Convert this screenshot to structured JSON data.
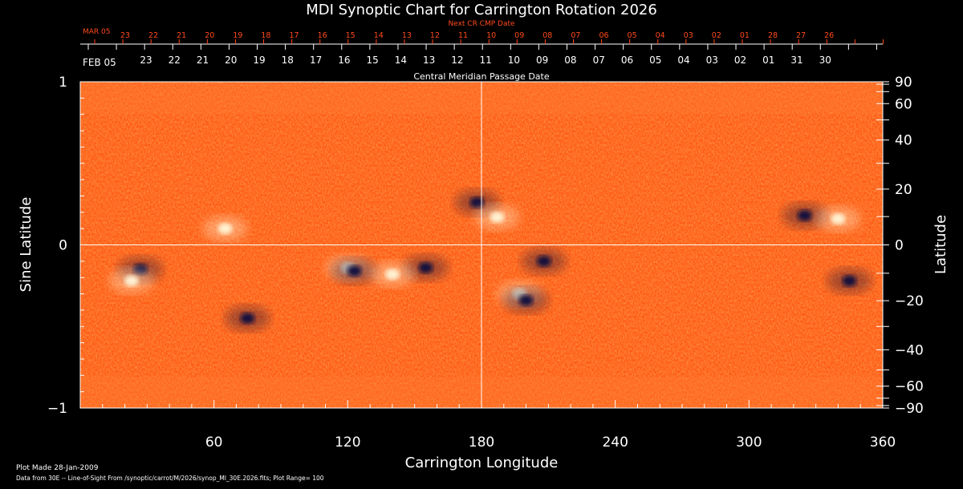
{
  "chart_data": {
    "type": "heatmap",
    "title": "MDI Synoptic Chart for Carrington Rotation 2026",
    "xlabel": "Carrington Longitude",
    "ylabel": "Sine Latitude",
    "y2label": "Latitude",
    "xlim": [
      0,
      360
    ],
    "ylim": [
      -1,
      1
    ],
    "x_ticks": [
      60,
      120,
      180,
      240,
      300,
      360
    ],
    "y_ticks_left": [
      {
        "value": 1,
        "label": "1"
      },
      {
        "value": 0,
        "label": "0"
      },
      {
        "value": -1,
        "label": "−1"
      }
    ],
    "y_ticks_right": [
      {
        "lat": 90,
        "label": "90"
      },
      {
        "lat": 60,
        "label": "60"
      },
      {
        "lat": 40,
        "label": "40"
      },
      {
        "lat": 20,
        "label": "20"
      },
      {
        "lat": 0,
        "label": "0"
      },
      {
        "lat": -20,
        "label": "−20"
      },
      {
        "lat": -40,
        "label": "−40"
      },
      {
        "lat": -60,
        "label": "−60"
      },
      {
        "lat": -90,
        "label": "−90"
      }
    ],
    "cmp_axis": {
      "label": "Central Meridian Passage Date",
      "start_label": "FEB 05",
      "dates": [
        "23",
        "22",
        "21",
        "20",
        "19",
        "18",
        "17",
        "16",
        "15",
        "14",
        "13",
        "12",
        "11",
        "10",
        "09",
        "08",
        "07",
        "06",
        "05",
        "04",
        "03",
        "02",
        "01",
        "31",
        "30"
      ]
    },
    "next_cmp_axis": {
      "label": "Next CR CMP Date",
      "start_label": "MAR 05",
      "dates": [
        "23",
        "22",
        "21",
        "20",
        "19",
        "18",
        "17",
        "16",
        "15",
        "14",
        "13",
        "12",
        "11",
        "10",
        "09",
        "08",
        "07",
        "06",
        "05",
        "04",
        "03",
        "02",
        "01",
        "28",
        "27",
        "26"
      ]
    },
    "crosshair": {
      "longitude": 180,
      "sine_latitude": 0
    },
    "colormap": {
      "high": "#ffffff",
      "mid": "#ff5a00",
      "low": "#0a0a40"
    },
    "plot_range": 100,
    "features": [
      {
        "polarity": "negative",
        "lon": 178,
        "sinlat": 0.26
      },
      {
        "polarity": "positive",
        "lon": 187,
        "sinlat": 0.17
      },
      {
        "polarity": "positive",
        "lon": 120,
        "sinlat": -0.14
      },
      {
        "polarity": "negative",
        "lon": 123,
        "sinlat": -0.16
      },
      {
        "polarity": "negative",
        "lon": 155,
        "sinlat": -0.14
      },
      {
        "polarity": "positive",
        "lon": 140,
        "sinlat": -0.18
      },
      {
        "polarity": "negative",
        "lon": 208,
        "sinlat": -0.1
      },
      {
        "polarity": "positive",
        "lon": 197,
        "sinlat": -0.3
      },
      {
        "polarity": "negative",
        "lon": 200,
        "sinlat": -0.34
      },
      {
        "polarity": "negative",
        "lon": 325,
        "sinlat": 0.18
      },
      {
        "polarity": "positive",
        "lon": 340,
        "sinlat": 0.16
      },
      {
        "polarity": "negative",
        "lon": 27,
        "sinlat": -0.15
      },
      {
        "polarity": "positive",
        "lon": 23,
        "sinlat": -0.22
      },
      {
        "polarity": "negative",
        "lon": 75,
        "sinlat": -0.45
      },
      {
        "polarity": "positive",
        "lon": 65,
        "sinlat": 0.1
      },
      {
        "polarity": "negative",
        "lon": 345,
        "sinlat": -0.22
      }
    ]
  },
  "footer": {
    "plot_made": "Plot Made 28-Jan-2009",
    "source": "Data from 30E -- Line-of-Sight From /synoptic/carrot/M/2026/synop_Ml_30E.2026.fits; Plot Range= 100"
  }
}
